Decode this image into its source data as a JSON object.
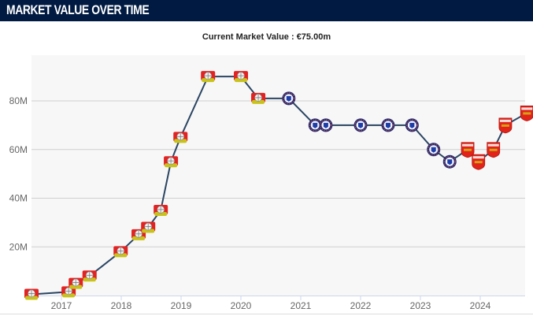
{
  "header": {
    "title": "MARKET VALUE OVER TIME"
  },
  "chart_data": {
    "type": "line",
    "title": "Current Market Value : €75.00m",
    "xlabel": "",
    "ylabel": "",
    "ylim": [
      0,
      95
    ],
    "xlim": [
      2016.45,
      2024.85
    ],
    "y_ticks": [
      {
        "value": 20,
        "label": "20M"
      },
      {
        "value": 40,
        "label": "40M"
      },
      {
        "value": 60,
        "label": "60M"
      },
      {
        "value": 80,
        "label": "80M"
      }
    ],
    "x_ticks": [
      {
        "value": 2017,
        "label": "2017"
      },
      {
        "value": 2018,
        "label": "2018"
      },
      {
        "value": 2019,
        "label": "2019"
      },
      {
        "value": 2020,
        "label": "2020"
      },
      {
        "value": 2021,
        "label": "2021"
      },
      {
        "value": 2022,
        "label": "2022"
      },
      {
        "value": 2023,
        "label": "2023"
      },
      {
        "value": 2024,
        "label": "2024"
      }
    ],
    "grid": true,
    "unit": "€m",
    "series": [
      {
        "name": "Market value",
        "color": "#2b4563",
        "points": [
          {
            "x": 2016.5,
            "y": 0.5,
            "club": "Bayer Leverkusen"
          },
          {
            "x": 2017.12,
            "y": 1.5,
            "club": "Bayer Leverkusen"
          },
          {
            "x": 2017.24,
            "y": 5,
            "club": "Bayer Leverkusen"
          },
          {
            "x": 2017.47,
            "y": 8,
            "club": "Bayer Leverkusen"
          },
          {
            "x": 2017.99,
            "y": 18,
            "club": "Bayer Leverkusen"
          },
          {
            "x": 2018.29,
            "y": 25,
            "club": "Bayer Leverkusen"
          },
          {
            "x": 2018.45,
            "y": 28,
            "club": "Bayer Leverkusen"
          },
          {
            "x": 2018.66,
            "y": 35,
            "club": "Bayer Leverkusen"
          },
          {
            "x": 2018.83,
            "y": 55,
            "club": "Bayer Leverkusen"
          },
          {
            "x": 2018.99,
            "y": 65,
            "club": "Bayer Leverkusen"
          },
          {
            "x": 2019.45,
            "y": 90,
            "club": "Bayer Leverkusen"
          },
          {
            "x": 2020.0,
            "y": 90,
            "club": "Bayer Leverkusen"
          },
          {
            "x": 2020.29,
            "y": 81,
            "club": "Bayer Leverkusen"
          },
          {
            "x": 2020.8,
            "y": 81,
            "club": "Chelsea"
          },
          {
            "x": 2021.24,
            "y": 70,
            "club": "Chelsea"
          },
          {
            "x": 2021.42,
            "y": 70,
            "club": "Chelsea"
          },
          {
            "x": 2022.0,
            "y": 70,
            "club": "Chelsea"
          },
          {
            "x": 2022.46,
            "y": 70,
            "club": "Chelsea"
          },
          {
            "x": 2022.86,
            "y": 70,
            "club": "Chelsea"
          },
          {
            "x": 2023.22,
            "y": 60,
            "club": "Chelsea"
          },
          {
            "x": 2023.49,
            "y": 55,
            "club": "Chelsea"
          },
          {
            "x": 2023.79,
            "y": 60,
            "club": "Arsenal"
          },
          {
            "x": 2023.97,
            "y": 55,
            "club": "Arsenal"
          },
          {
            "x": 2024.22,
            "y": 60,
            "club": "Arsenal"
          },
          {
            "x": 2024.42,
            "y": 70,
            "club": "Arsenal"
          },
          {
            "x": 2024.78,
            "y": 75,
            "club": "Arsenal"
          }
        ]
      }
    ],
    "colors": {
      "plot_bg": "#f7f7f7",
      "grid": "#cfcfcf",
      "line": "#2b4563"
    }
  }
}
